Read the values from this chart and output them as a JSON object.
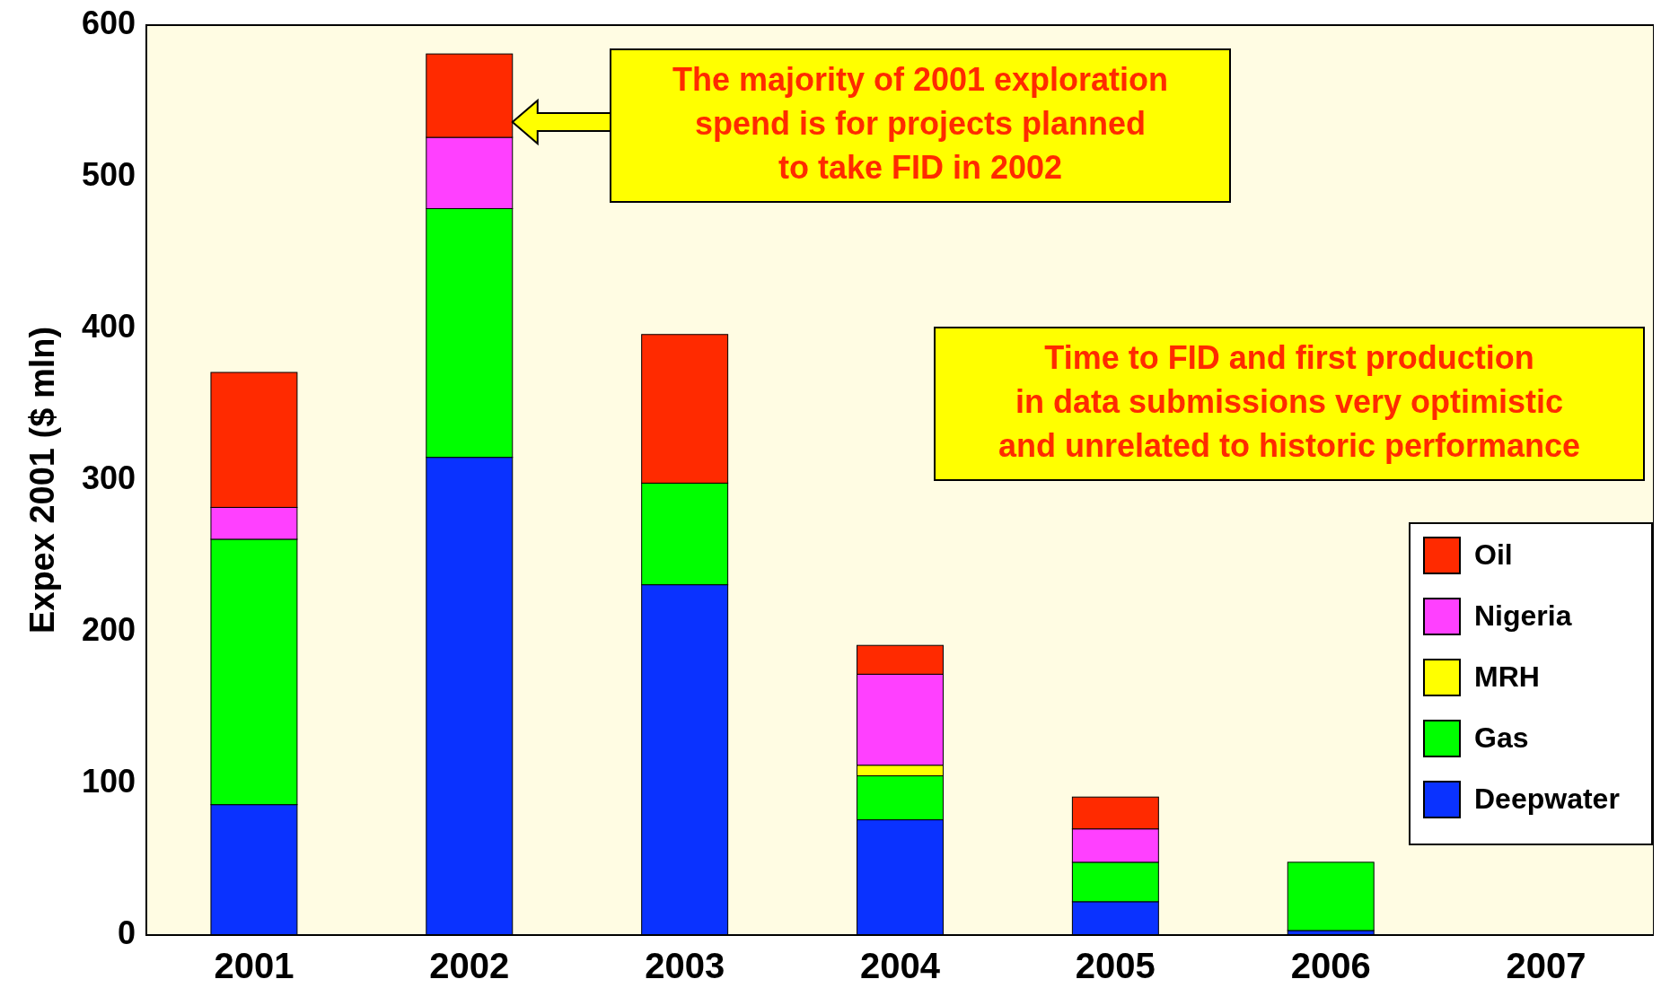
{
  "chart_data": {
    "type": "bar",
    "stacked": true,
    "ylabel": "Expex 2001 ($ mln)",
    "categories": [
      "2001",
      "2002",
      "2003",
      "2004",
      "2005",
      "2006",
      "2007"
    ],
    "series": [
      {
        "name": "Deepwater",
        "color": "#0a32ff",
        "values": [
          86,
          315,
          231,
          76,
          22,
          3,
          null
        ]
      },
      {
        "name": "Gas",
        "color": "#00ff00",
        "values": [
          175,
          164,
          67,
          29,
          26,
          45,
          null
        ]
      },
      {
        "name": "MRH",
        "color": "#ffff00",
        "values": [
          0,
          0,
          0,
          7,
          0,
          0,
          null
        ]
      },
      {
        "name": "Nigeria",
        "color": "#ff40ff",
        "values": [
          21,
          47,
          0,
          60,
          22,
          0,
          null
        ]
      },
      {
        "name": "Oil",
        "color": "#ff2a00",
        "values": [
          89,
          55,
          98,
          19,
          21,
          0,
          null
        ]
      }
    ],
    "ylim": [
      0,
      600
    ],
    "yticks": [
      0,
      100,
      200,
      300,
      400,
      500,
      600
    ],
    "legend": "right",
    "annotations": [
      "The majority of 2001 exploration\nspend is for projects planned\nto take FID in 2002",
      "Time to FID and first production\nin data submissions very optimistic\nand unrelated to historic performance"
    ]
  }
}
